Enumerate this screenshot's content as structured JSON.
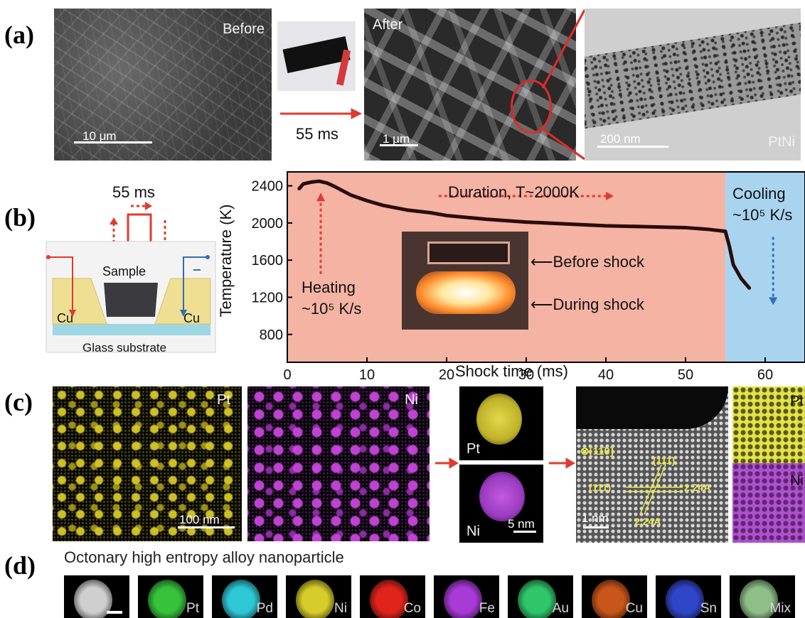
{
  "panels": {
    "a": {
      "label": "(a)",
      "before_label": "Before",
      "before_scale": "10 μm",
      "arrow_text": "55 ms",
      "after_label": "After",
      "after_scale": "1 μm",
      "tem_scale": "200 nm",
      "tem_label": "PtNi"
    },
    "b": {
      "label": "(b)",
      "pulse_label": "55 ms",
      "sample_label": "Sample",
      "cu_left": "Cu",
      "cu_right": "Cu",
      "substrate_label": "Glass substrate",
      "heating_line1": "Heating",
      "heating_line2": "~10⁵ K/s",
      "duration_label": "Duration, T~2000K",
      "cooling_line1": "Cooling",
      "cooling_line2": "~10⁵ K/s",
      "before_shock": "⟵Before shock",
      "during_shock": "⟵During shock"
    },
    "c": {
      "label": "(c)",
      "map_pt_label": "Pt",
      "map_ni_label": "Ni",
      "map_scale": "100 nm",
      "np_pt_label": "Pt",
      "np_ni_label": "Ni",
      "np_scale": "5 nm",
      "zone_axis": "⊗[11̄0]",
      "plane_111": "(111)",
      "plane_11m1": "(111̄)",
      "d_spacing_1": "2.24A",
      "d_spacing_2": "2.24A",
      "hr_scale": "1 nm",
      "lattice_pt_label": "Pt",
      "lattice_ni_label": "Ni"
    },
    "d": {
      "label": "(d)",
      "title": "Octonary high entropy alloy nanoparticle",
      "tiles": [
        {
          "label": "",
          "color": "#cfcfcf"
        },
        {
          "label": "Pt",
          "color": "#36c23a"
        },
        {
          "label": "Pd",
          "color": "#2ec7d6"
        },
        {
          "label": "Ni",
          "color": "#d6cc2a"
        },
        {
          "label": "Co",
          "color": "#e0241c"
        },
        {
          "label": "Fe",
          "color": "#a83ad6"
        },
        {
          "label": "Au",
          "color": "#2fc56a"
        },
        {
          "label": "Cu",
          "color": "#c8561a"
        },
        {
          "label": "Sn",
          "color": "#3046c8"
        },
        {
          "label": "Mix",
          "color": "#8fbf88"
        }
      ]
    }
  },
  "chart_data": {
    "type": "line",
    "xlabel": "Shock time (ms)",
    "ylabel": "Temperature (K)",
    "xlim": [
      0,
      65
    ],
    "ylim": [
      500,
      2550
    ],
    "xticks": [
      0,
      10,
      20,
      30,
      40,
      50,
      60
    ],
    "yticks": [
      800,
      1200,
      1600,
      2000,
      2400
    ],
    "regions": [
      {
        "name": "heating/duration",
        "x": [
          0,
          55
        ],
        "color": "#f4b3a3"
      },
      {
        "name": "cooling",
        "x": [
          55,
          65
        ],
        "color": "#a9d4ef"
      }
    ],
    "series": [
      {
        "x": [
          1.5,
          2,
          3,
          4,
          5,
          6,
          8,
          10,
          12,
          15,
          18,
          20,
          25,
          30,
          35,
          40,
          45,
          50,
          53,
          55,
          55.5,
          56,
          57,
          58
        ],
        "y": [
          2370,
          2420,
          2440,
          2450,
          2430,
          2390,
          2300,
          2240,
          2190,
          2140,
          2110,
          2080,
          2040,
          2010,
          1990,
          1970,
          1960,
          1950,
          1930,
          1910,
          1750,
          1550,
          1400,
          1300
        ]
      }
    ]
  }
}
